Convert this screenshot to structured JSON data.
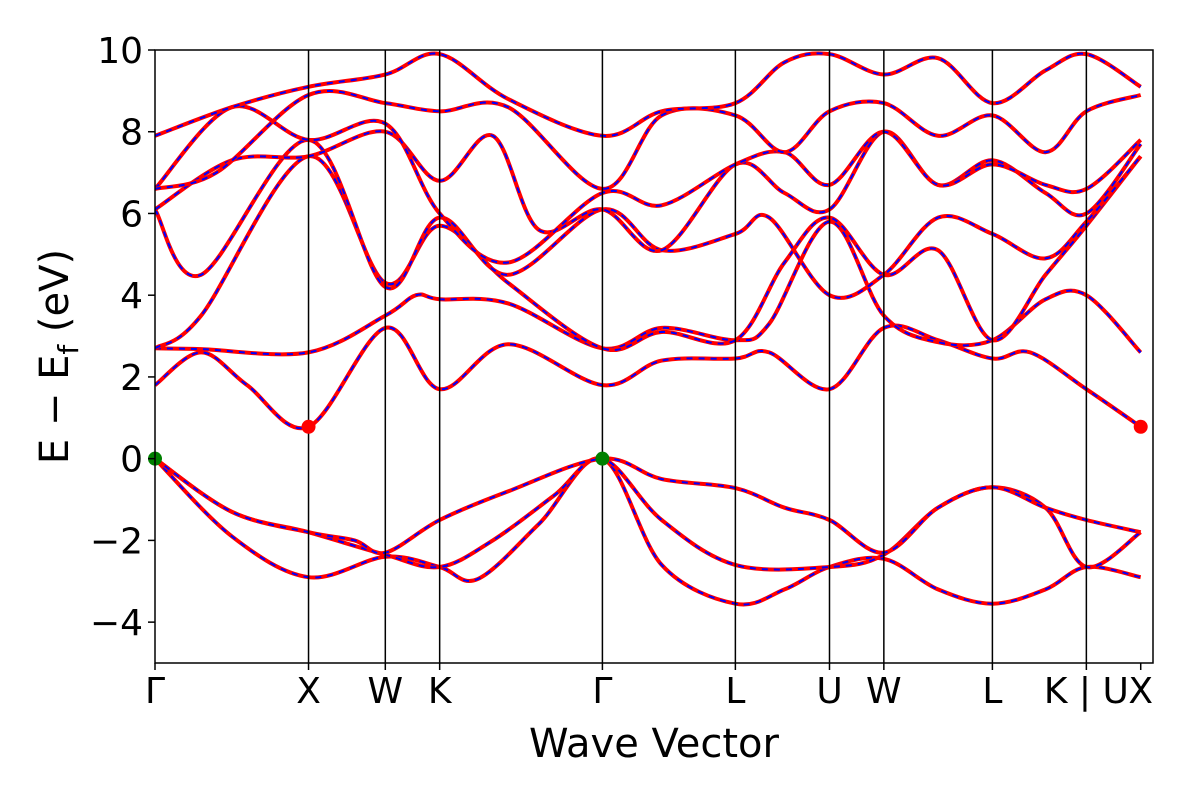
{
  "chart_data": {
    "type": "line",
    "xlabel": "Wave Vector",
    "ylabel": "E − E",
    "ylabel_sub": "f",
    "ylabel_unit": " (eV)",
    "ylim": [
      -5,
      10
    ],
    "yticks": [
      -4,
      -2,
      0,
      2,
      4,
      6,
      8,
      10
    ],
    "xlim": [
      0,
      6.5
    ],
    "kpoints": [
      {
        "label": "Γ",
        "x": 0.0
      },
      {
        "label": "X",
        "x": 1.0
      },
      {
        "label": "W",
        "x": 1.5
      },
      {
        "label": "K",
        "x": 1.854
      },
      {
        "label": "Γ",
        "x": 2.914
      },
      {
        "label": "L",
        "x": 3.78
      },
      {
        "label": "U",
        "x": 4.393
      },
      {
        "label": "W",
        "x": 4.747
      },
      {
        "label": "L",
        "x": 5.454
      },
      {
        "label": "K | U",
        "x": 6.066
      },
      {
        "label": "X",
        "x": 6.42
      }
    ],
    "colors": {
      "band": "#ff0000",
      "band_overlay": "#0000ff",
      "vbm_marker": "#008000",
      "cbm_marker": "#ff0000",
      "vline": "#000000"
    },
    "bands": [
      {
        "name": "",
        "points": [
          [
            0,
            0
          ],
          [
            0.5,
            -1.9
          ],
          [
            1,
            -2.9
          ],
          [
            1.5,
            -2.4
          ],
          [
            1.854,
            -2.65
          ],
          [
            2.1,
            -2.95
          ],
          [
            2.5,
            -1.6
          ],
          [
            2.914,
            0
          ],
          [
            3.3,
            -2.6
          ],
          [
            3.78,
            -3.55
          ],
          [
            4.1,
            -3.2
          ],
          [
            4.393,
            -2.65
          ],
          [
            4.747,
            -2.45
          ],
          [
            5.1,
            -3.2
          ],
          [
            5.454,
            -3.55
          ],
          [
            5.8,
            -3.2
          ],
          [
            6.066,
            -2.65
          ],
          [
            6.42,
            -2.9
          ]
        ]
      },
      {
        "name": "",
        "points": [
          [
            0,
            0
          ],
          [
            0.5,
            -1.3
          ],
          [
            1,
            -1.8
          ],
          [
            1.5,
            -2.35
          ],
          [
            1.854,
            -2.65
          ],
          [
            2.2,
            -2.0
          ],
          [
            2.6,
            -0.9
          ],
          [
            2.914,
            0
          ],
          [
            3.3,
            -1.5
          ],
          [
            3.78,
            -2.6
          ],
          [
            4.393,
            -2.65
          ],
          [
            4.747,
            -2.35
          ],
          [
            5.1,
            -1.2
          ],
          [
            5.454,
            -0.7
          ],
          [
            5.8,
            -1.2
          ],
          [
            6.066,
            -2.65
          ],
          [
            6.42,
            -1.8
          ]
        ]
      },
      {
        "name": "",
        "points": [
          [
            0,
            0
          ],
          [
            0.5,
            -1.3
          ],
          [
            1,
            -1.8
          ],
          [
            1.3,
            -2.0
          ],
          [
            1.5,
            -2.3
          ],
          [
            1.854,
            -1.5
          ],
          [
            2.3,
            -0.8
          ],
          [
            2.914,
            0
          ],
          [
            3.3,
            -0.5
          ],
          [
            3.78,
            -0.72
          ],
          [
            4.1,
            -1.2
          ],
          [
            4.393,
            -1.5
          ],
          [
            4.747,
            -2.3
          ],
          [
            5.1,
            -1.2
          ],
          [
            5.454,
            -0.7
          ],
          [
            5.8,
            -1.2
          ],
          [
            6.066,
            -1.5
          ],
          [
            6.42,
            -1.8
          ]
        ]
      },
      {
        "name": "",
        "points": [
          [
            0,
            1.8
          ],
          [
            0.3,
            2.6
          ],
          [
            0.6,
            1.8
          ],
          [
            1,
            0.78
          ],
          [
            1.5,
            3.2
          ],
          [
            1.854,
            1.7
          ],
          [
            2.3,
            2.8
          ],
          [
            2.914,
            1.8
          ],
          [
            3.3,
            2.4
          ],
          [
            3.78,
            2.45
          ],
          [
            4.0,
            2.6
          ],
          [
            4.393,
            1.7
          ],
          [
            4.747,
            3.2
          ],
          [
            5.1,
            2.9
          ],
          [
            5.454,
            2.45
          ],
          [
            5.7,
            2.6
          ],
          [
            6.066,
            1.7
          ],
          [
            6.42,
            0.78
          ]
        ]
      },
      {
        "name": "",
        "points": [
          [
            0,
            2.7
          ],
          [
            0.3,
            2.68
          ],
          [
            1,
            2.6
          ],
          [
            1.5,
            3.5
          ],
          [
            1.7,
            4.0
          ],
          [
            1.854,
            3.9
          ],
          [
            2.3,
            3.8
          ],
          [
            2.914,
            2.7
          ],
          [
            3.3,
            3.2
          ],
          [
            3.78,
            2.9
          ],
          [
            4.0,
            3.3
          ],
          [
            4.393,
            5.8
          ],
          [
            4.747,
            3.5
          ],
          [
            5.1,
            2.85
          ],
          [
            5.454,
            2.9
          ],
          [
            5.8,
            3.9
          ],
          [
            6.066,
            4.0
          ],
          [
            6.42,
            2.6
          ]
        ]
      },
      {
        "name": "",
        "points": [
          [
            0,
            2.7
          ],
          [
            0.3,
            3.5
          ],
          [
            1,
            7.4
          ],
          [
            1.5,
            4.3
          ],
          [
            1.854,
            5.7
          ],
          [
            2.3,
            4.3
          ],
          [
            2.914,
            2.7
          ],
          [
            3.3,
            3.1
          ],
          [
            3.78,
            2.9
          ],
          [
            4.1,
            4.8
          ],
          [
            4.393,
            5.9
          ],
          [
            4.747,
            4.5
          ],
          [
            5.1,
            5.1
          ],
          [
            5.454,
            2.9
          ],
          [
            5.8,
            4.5
          ],
          [
            6.066,
            5.7
          ],
          [
            6.42,
            7.4
          ]
        ]
      },
      {
        "name": "",
        "points": [
          [
            0,
            6.1
          ],
          [
            0.3,
            4.5
          ],
          [
            1,
            7.8
          ],
          [
            1.5,
            4.2
          ],
          [
            1.854,
            5.9
          ],
          [
            2.3,
            4.5
          ],
          [
            2.914,
            6.1
          ],
          [
            3.3,
            5.1
          ],
          [
            3.78,
            5.5
          ],
          [
            4.0,
            5.9
          ],
          [
            4.393,
            4.0
          ],
          [
            4.747,
            4.5
          ],
          [
            5.1,
            5.9
          ],
          [
            5.454,
            5.5
          ],
          [
            5.8,
            4.9
          ],
          [
            6.066,
            5.8
          ],
          [
            6.42,
            7.4
          ]
        ]
      },
      {
        "name": "",
        "points": [
          [
            0,
            6.1
          ],
          [
            0.5,
            7.3
          ],
          [
            1,
            7.4
          ],
          [
            1.5,
            8.0
          ],
          [
            1.854,
            6.8
          ],
          [
            2.2,
            7.9
          ],
          [
            2.5,
            5.6
          ],
          [
            2.914,
            6.1
          ],
          [
            3.3,
            5.1
          ],
          [
            3.78,
            7.2
          ],
          [
            4.1,
            6.5
          ],
          [
            4.393,
            6.1
          ],
          [
            4.747,
            8.0
          ],
          [
            5.1,
            6.7
          ],
          [
            5.454,
            7.3
          ],
          [
            5.8,
            6.5
          ],
          [
            6.066,
            6.0
          ],
          [
            6.42,
            7.7
          ]
        ]
      },
      {
        "name": "",
        "points": [
          [
            0,
            6.6
          ],
          [
            0.5,
            8.6
          ],
          [
            1,
            7.8
          ],
          [
            1.5,
            8.2
          ],
          [
            1.854,
            6.0
          ],
          [
            2.3,
            4.8
          ],
          [
            2.914,
            6.5
          ],
          [
            3.3,
            6.2
          ],
          [
            3.78,
            7.2
          ],
          [
            4.1,
            7.5
          ],
          [
            4.393,
            6.7
          ],
          [
            4.747,
            8.0
          ],
          [
            5.1,
            6.7
          ],
          [
            5.454,
            7.2
          ],
          [
            5.8,
            6.7
          ],
          [
            6.066,
            6.6
          ],
          [
            6.42,
            7.8
          ]
        ]
      },
      {
        "name": "",
        "points": [
          [
            0,
            6.6
          ],
          [
            0.4,
            7.0
          ],
          [
            1,
            8.9
          ],
          [
            1.5,
            8.7
          ],
          [
            1.854,
            8.5
          ],
          [
            2.3,
            8.6
          ],
          [
            2.914,
            6.6
          ],
          [
            3.3,
            8.4
          ],
          [
            3.78,
            8.4
          ],
          [
            4.1,
            7.5
          ],
          [
            4.393,
            8.5
          ],
          [
            4.747,
            8.7
          ],
          [
            5.1,
            7.9
          ],
          [
            5.454,
            8.4
          ],
          [
            5.8,
            7.5
          ],
          [
            6.066,
            8.5
          ],
          [
            6.42,
            8.9
          ]
        ]
      },
      {
        "name": "",
        "points": [
          [
            0,
            7.9
          ],
          [
            0.5,
            8.6
          ],
          [
            1,
            9.1
          ],
          [
            1.5,
            9.4
          ],
          [
            1.854,
            9.9
          ],
          [
            2.3,
            8.8
          ],
          [
            2.914,
            7.9
          ],
          [
            3.3,
            8.5
          ],
          [
            3.78,
            8.7
          ],
          [
            4.1,
            9.7
          ],
          [
            4.393,
            9.9
          ],
          [
            4.747,
            9.4
          ],
          [
            5.1,
            9.8
          ],
          [
            5.454,
            8.7
          ],
          [
            5.8,
            9.5
          ],
          [
            6.066,
            9.9
          ],
          [
            6.42,
            9.1
          ]
        ]
      }
    ]
  }
}
